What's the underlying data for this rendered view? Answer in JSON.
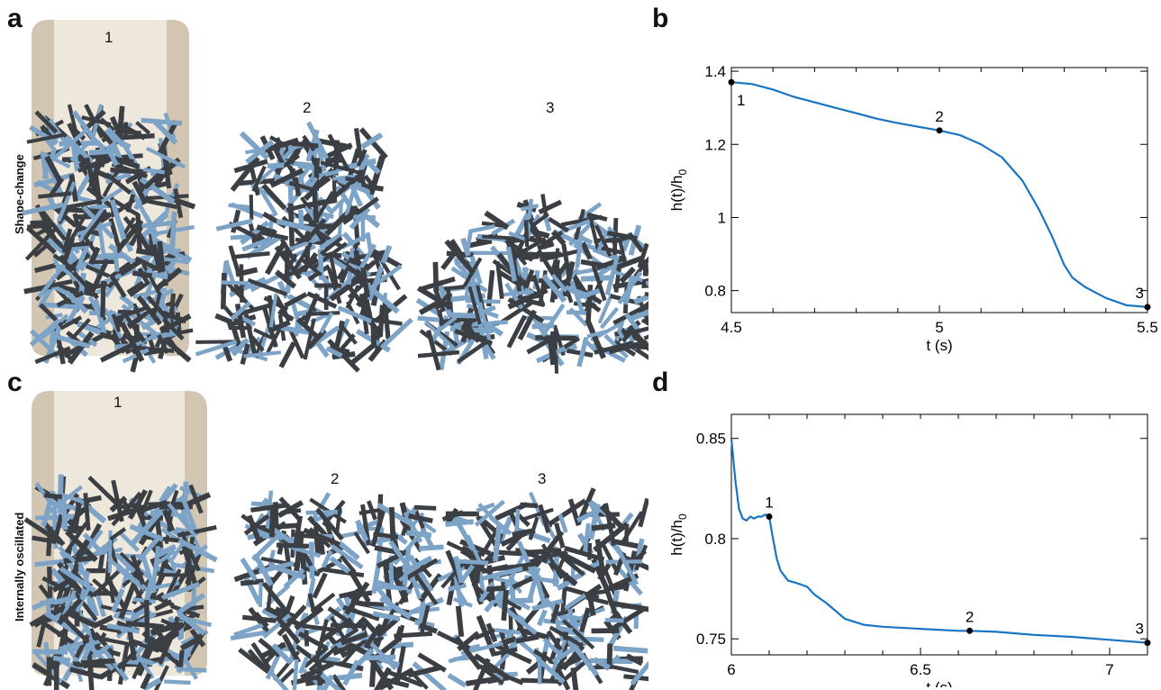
{
  "panels": {
    "a": {
      "letter": "a",
      "row_label": "Shape-change",
      "stages": [
        "1",
        "2",
        "3"
      ]
    },
    "b": {
      "letter": "b"
    },
    "c": {
      "letter": "c",
      "row_label": "Internally oscillated",
      "stages": [
        "1",
        "2",
        "3"
      ]
    },
    "d": {
      "letter": "d"
    }
  },
  "colors": {
    "rod_dark": "#3b3f44",
    "rod_blue": "#7da3c6",
    "container": "#d8cbb7",
    "curve": "#1a74c4"
  },
  "chart_data": [
    {
      "type": "line",
      "panel": "b",
      "xlabel": "t (s)",
      "ylabel": "h(t)/h",
      "ylabel_sub": "0",
      "xlim": [
        4.5,
        5.5
      ],
      "ylim": [
        0.74,
        1.41
      ],
      "xticks": [
        4.5,
        5,
        5.5
      ],
      "xtick_labels": [
        "4.5",
        "5",
        "5.5"
      ],
      "yticks": [
        0.8,
        1,
        1.2,
        1.4
      ],
      "ytick_labels": [
        "0.8",
        "1",
        "1.2",
        "1.4"
      ],
      "series": [
        {
          "x": [
            4.5,
            4.55,
            4.6,
            4.65,
            4.7,
            4.75,
            4.8,
            4.85,
            4.9,
            4.95,
            5.0,
            5.05,
            5.1,
            5.15,
            5.2,
            5.24,
            5.27,
            5.3,
            5.32,
            5.35,
            5.4,
            5.45,
            5.5
          ],
          "y": [
            1.37,
            1.365,
            1.35,
            1.33,
            1.315,
            1.3,
            1.285,
            1.27,
            1.258,
            1.248,
            1.238,
            1.225,
            1.2,
            1.165,
            1.1,
            1.02,
            0.95,
            0.87,
            0.835,
            0.81,
            0.78,
            0.76,
            0.755
          ]
        }
      ],
      "markers": [
        {
          "label": "1",
          "x": 4.5,
          "y": 1.37
        },
        {
          "label": "2",
          "x": 5.0,
          "y": 1.238
        },
        {
          "label": "3",
          "x": 5.5,
          "y": 0.755
        }
      ]
    },
    {
      "type": "line",
      "panel": "d",
      "xlabel": "t (s)",
      "ylabel": "h(t)/h",
      "ylabel_sub": "0",
      "xlim": [
        6.0,
        7.1
      ],
      "ylim": [
        0.742,
        0.862
      ],
      "xticks": [
        6,
        6.5,
        7
      ],
      "xtick_labels": [
        "6",
        "6.5",
        "7"
      ],
      "yticks": [
        0.75,
        0.8,
        0.85
      ],
      "ytick_labels": [
        "0.75",
        "0.8",
        "0.85"
      ],
      "series": [
        {
          "x": [
            6.0,
            6.01,
            6.02,
            6.03,
            6.04,
            6.05,
            6.06,
            6.07,
            6.08,
            6.09,
            6.1,
            6.11,
            6.12,
            6.13,
            6.15,
            6.17,
            6.2,
            6.22,
            6.25,
            6.3,
            6.35,
            6.4,
            6.5,
            6.6,
            6.63,
            6.7,
            6.8,
            6.9,
            7.0,
            7.1
          ],
          "y": [
            0.85,
            0.83,
            0.815,
            0.81,
            0.809,
            0.811,
            0.81,
            0.811,
            0.811,
            0.812,
            0.811,
            0.8,
            0.79,
            0.784,
            0.779,
            0.778,
            0.776,
            0.772,
            0.768,
            0.76,
            0.757,
            0.756,
            0.755,
            0.754,
            0.754,
            0.7535,
            0.752,
            0.751,
            0.7495,
            0.748
          ]
        }
      ],
      "markers": [
        {
          "label": "1",
          "x": 6.1,
          "y": 0.811
        },
        {
          "label": "2",
          "x": 6.63,
          "y": 0.754
        },
        {
          "label": "3",
          "x": 7.1,
          "y": 0.748
        }
      ]
    }
  ]
}
